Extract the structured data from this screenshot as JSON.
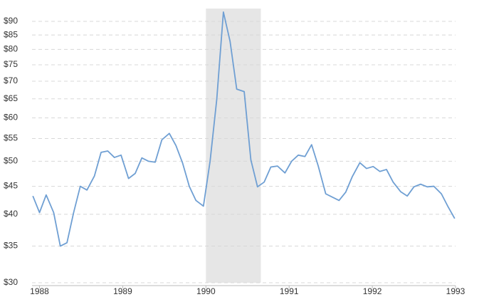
{
  "chart_data": {
    "type": "line",
    "log_y": true,
    "grid": true,
    "shade_color": "#e6e6e6",
    "shaded_range": [
      1990.0,
      1990.66
    ],
    "x": [
      1987.92,
      1988.0,
      1988.08,
      1988.17,
      1988.25,
      1988.33,
      1988.41,
      1988.49,
      1988.57,
      1988.66,
      1988.74,
      1988.82,
      1988.9,
      1988.98,
      1989.07,
      1989.15,
      1989.23,
      1989.31,
      1989.39,
      1989.47,
      1989.56,
      1989.64,
      1989.72,
      1989.8,
      1989.88,
      1989.97,
      1990.05,
      1990.13,
      1990.21,
      1990.29,
      1990.37,
      1990.46,
      1990.54,
      1990.62,
      1990.7,
      1990.78,
      1990.86,
      1990.95,
      1991.03,
      1991.11,
      1991.19,
      1991.27,
      1991.35,
      1991.44,
      1991.52,
      1991.6,
      1991.68,
      1991.76,
      1991.85,
      1991.93,
      1992.01,
      1992.09,
      1992.17,
      1992.25,
      1992.34,
      1992.42,
      1992.5,
      1992.58,
      1992.66,
      1992.74,
      1992.83,
      1992.91,
      1992.99
    ],
    "series": [
      {
        "color": "#6f9fd3",
        "values": [
          43.2,
          40.3,
          43.4,
          40.3,
          35.0,
          35.5,
          40.3,
          45.0,
          44.3,
          47.0,
          51.9,
          52.2,
          50.8,
          51.3,
          46.5,
          47.5,
          50.7,
          50.0,
          49.8,
          54.7,
          56.2,
          53.4,
          49.6,
          45.0,
          42.4,
          41.4,
          50.0,
          64.8,
          93.6,
          82.8,
          67.7,
          67.0,
          50.3,
          44.9,
          45.8,
          48.8,
          49.0,
          47.6,
          50.0,
          51.3,
          51.0,
          53.6,
          49.0,
          43.6,
          43.0,
          42.4,
          43.9,
          46.9,
          49.7,
          48.5,
          48.9,
          47.9,
          48.3,
          45.8,
          44.0,
          43.2,
          44.9,
          45.4,
          44.9,
          45.0,
          43.6,
          41.3,
          39.3
        ]
      }
    ],
    "xlim": [
      1987.91,
      1993.0
    ],
    "xticks": [
      1988,
      1989,
      1990,
      1991,
      1992,
      1993
    ],
    "ylim": [
      30,
      95
    ],
    "yticks": [
      {
        "value": 30,
        "label": "$30"
      },
      {
        "value": 35,
        "label": "$35"
      },
      {
        "value": 40,
        "label": "$40"
      },
      {
        "value": 45,
        "label": "$45"
      },
      {
        "value": 50,
        "label": "$50"
      },
      {
        "value": 55,
        "label": "$55"
      },
      {
        "value": 60,
        "label": "$60"
      },
      {
        "value": 65,
        "label": "$65"
      },
      {
        "value": 70,
        "label": "$70"
      },
      {
        "value": 75,
        "label": "$75"
      },
      {
        "value": 80,
        "label": "$80"
      },
      {
        "value": 85,
        "label": "$85"
      },
      {
        "value": 90,
        "label": "$90"
      }
    ]
  }
}
